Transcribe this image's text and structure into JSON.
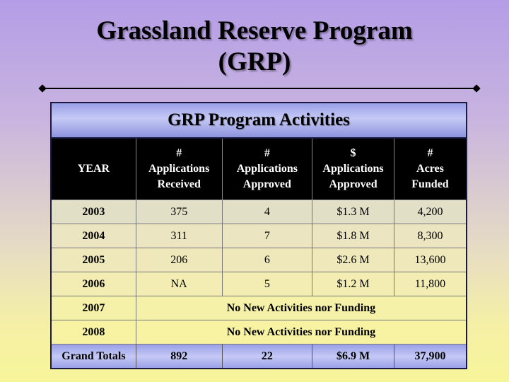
{
  "slide": {
    "title_line1": "Grassland Reserve Program",
    "title_line2": "(GRP)"
  },
  "table": {
    "caption": "GRP Program Activities",
    "headers": [
      {
        "line1": "YEAR",
        "line2": "",
        "line3": ""
      },
      {
        "line1": "#",
        "line2": "Applications",
        "line3": "Received"
      },
      {
        "line1": "#",
        "line2": "Applications",
        "line3": "Approved"
      },
      {
        "line1": "$",
        "line2": "Applications",
        "line3": "Approved"
      },
      {
        "line1": "#",
        "line2": "Acres",
        "line3": "Funded"
      }
    ],
    "rows": [
      [
        "2003",
        "375",
        "4",
        "$1.3 M",
        "4,200"
      ],
      [
        "2004",
        "311",
        "7",
        "$1.8 M",
        "8,300"
      ],
      [
        "2005",
        "206",
        "6",
        "$2.6 M",
        "13,600"
      ],
      [
        "2006",
        "NA",
        "5",
        "$1.2 M",
        "11,800"
      ]
    ],
    "no_activity_rows": [
      {
        "year": "2007",
        "note": "No New Activities nor Funding"
      },
      {
        "year": "2008",
        "note": "No New Activities nor Funding"
      }
    ],
    "totals": [
      "Grand Totals",
      "892",
      "22",
      "$6.9 M",
      "37,900"
    ]
  }
}
